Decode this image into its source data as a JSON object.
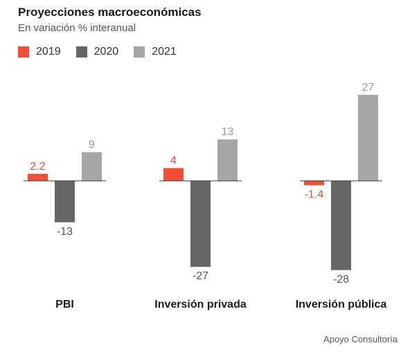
{
  "title": "Proyecciones macroeconómicas",
  "subtitle": "En variación % interanual",
  "source": "Apoyo Consultoría",
  "colors": {
    "2019": "#f04e37",
    "2020": "#666666",
    "2021": "#a6a6a6"
  },
  "chart_data": {
    "type": "bar",
    "title": "Proyecciones macroeconómicas",
    "subtitle": "En variación % interanual",
    "categories": [
      "PBI",
      "Inversión privada",
      "Inversión pública"
    ],
    "series": [
      {
        "name": "2019",
        "values": [
          2.2,
          4,
          -1.4
        ],
        "labels": [
          "2.2",
          "4",
          "-1.4"
        ]
      },
      {
        "name": "2020",
        "values": [
          -13,
          -27,
          -28
        ],
        "labels": [
          "-13",
          "-27",
          "-28"
        ]
      },
      {
        "name": "2021",
        "values": [
          9,
          13,
          27
        ],
        "labels": [
          "9",
          "13",
          "27"
        ]
      }
    ],
    "legend": "top-left",
    "grid": false
  }
}
